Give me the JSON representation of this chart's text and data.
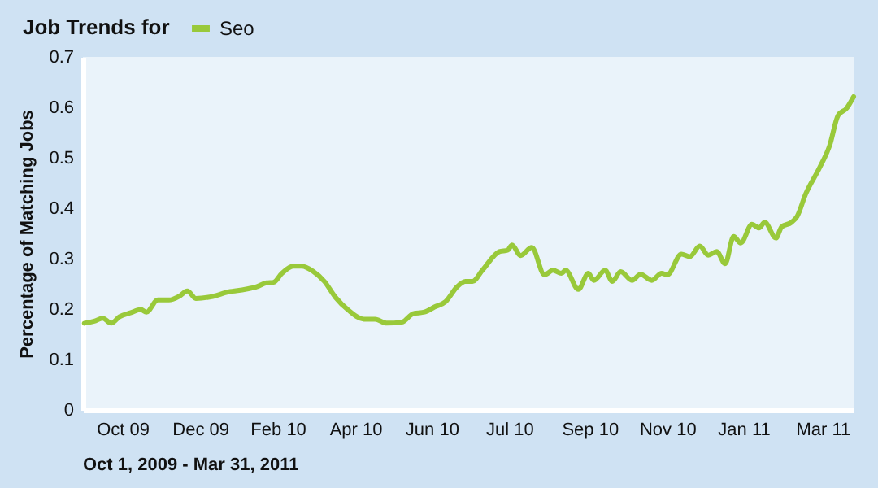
{
  "chart_data": {
    "type": "line",
    "title": "Job Trends for",
    "ylabel": "Percentage of Matching Jobs",
    "annotations": [
      "Oct 1, 2009 - Mar 31, 2011"
    ],
    "x": [
      "2009-10-02",
      "2009-10-10",
      "2009-10-15",
      "2009-10-21",
      "2009-10-27",
      "2009-11-04",
      "2009-11-11",
      "2009-11-15",
      "2009-11-23",
      "2009-12-01",
      "2009-12-08",
      "2009-12-14",
      "2009-12-20",
      "2010-01-01",
      "2010-01-12",
      "2010-01-24",
      "2010-02-01",
      "2010-02-08",
      "2010-02-13",
      "2010-02-19",
      "2010-02-27",
      "2010-03-05",
      "2010-03-13",
      "2010-03-21",
      "2010-03-29",
      "2010-04-07",
      "2010-04-18",
      "2010-04-26",
      "2010-05-04",
      "2010-05-15",
      "2010-05-23",
      "2010-05-31",
      "2010-06-07",
      "2010-06-15",
      "2010-06-23",
      "2010-06-29",
      "2010-07-04",
      "2010-07-11",
      "2010-07-23",
      "2010-07-29",
      "2010-08-01",
      "2010-08-07",
      "2010-08-15",
      "2010-08-24",
      "2010-08-30",
      "2010-09-05",
      "2010-09-08",
      "2010-09-17",
      "2010-09-24",
      "2010-09-28",
      "2010-10-06",
      "2010-10-11",
      "2010-10-17",
      "2010-10-25",
      "2010-10-31",
      "2010-11-08",
      "2010-11-15",
      "2010-11-19",
      "2010-11-29",
      "2010-12-05",
      "2010-12-12",
      "2010-12-18",
      "2010-12-24",
      "2010-12-30",
      "2011-01-05",
      "2011-01-10",
      "2011-01-18",
      "2011-01-23",
      "2011-01-27",
      "2011-02-04",
      "2011-02-08",
      "2011-02-15",
      "2011-02-19",
      "2011-02-25",
      "2011-03-07",
      "2011-03-14",
      "2011-03-20",
      "2011-03-26",
      "2011-03-31"
    ],
    "series": [
      {
        "name": "Seo",
        "color": "#99c93a",
        "values": [
          0.172,
          0.177,
          0.182,
          0.172,
          0.185,
          0.193,
          0.199,
          0.194,
          0.218,
          0.218,
          0.225,
          0.236,
          0.221,
          0.225,
          0.234,
          0.239,
          0.244,
          0.252,
          0.253,
          0.271,
          0.285,
          0.285,
          0.275,
          0.255,
          0.223,
          0.198,
          0.18,
          0.18,
          0.172,
          0.174,
          0.191,
          0.194,
          0.204,
          0.215,
          0.244,
          0.255,
          0.255,
          0.277,
          0.314,
          0.317,
          0.327,
          0.306,
          0.322,
          0.268,
          0.277,
          0.271,
          0.277,
          0.239,
          0.271,
          0.257,
          0.277,
          0.255,
          0.274,
          0.257,
          0.269,
          0.257,
          0.271,
          0.268,
          0.309,
          0.304,
          0.325,
          0.307,
          0.314,
          0.29,
          0.344,
          0.331,
          0.368,
          0.361,
          0.372,
          0.341,
          0.363,
          0.372,
          0.384,
          0.428,
          0.481,
          0.524,
          0.584,
          0.598,
          0.621
        ]
      }
    ],
    "xlim": [
      "2009-10-01",
      "2011-03-31"
    ],
    "xticks": [
      {
        "value": "2009-10-29",
        "label": "Oct 09"
      },
      {
        "value": "2009-12-23",
        "label": "Dec 09"
      },
      {
        "value": "2010-02-16",
        "label": "Feb 10"
      },
      {
        "value": "2010-04-12",
        "label": "Apr 10"
      },
      {
        "value": "2010-06-05",
        "label": "Jun 10"
      },
      {
        "value": "2010-07-30",
        "label": "Jul 10"
      },
      {
        "value": "2010-09-25",
        "label": "Sep 10"
      },
      {
        "value": "2010-11-19",
        "label": "Nov 10"
      },
      {
        "value": "2011-01-12",
        "label": "Jan 11"
      },
      {
        "value": "2011-03-09",
        "label": "Mar 11"
      }
    ],
    "ylim": [
      0,
      0.7
    ],
    "yticks": [
      0,
      0.1,
      0.2,
      0.3,
      0.4,
      0.5,
      0.6,
      0.7
    ],
    "grid": false,
    "legend": "top",
    "marker": "none",
    "line_style": "solid"
  }
}
